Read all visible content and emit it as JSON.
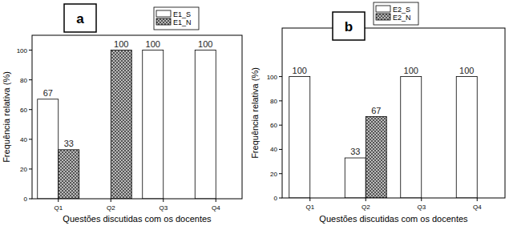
{
  "chart_data": [
    {
      "type": "bar",
      "title": "a",
      "xlabel": "Questões discutidas com os docentes",
      "ylabel": "Frequência relativa (%)",
      "categories": [
        "Q1",
        "Q2",
        "Q3",
        "Q4"
      ],
      "series": [
        {
          "name": "E1_S",
          "color": "#ffffff",
          "values": [
            67,
            null,
            100,
            100
          ]
        },
        {
          "name": "E1_N",
          "color": "#555555",
          "marker": "hatch",
          "values": [
            33,
            100,
            null,
            null
          ]
        }
      ],
      "ylim": [
        0,
        110
      ],
      "yticks": [
        0,
        20,
        40,
        60,
        80,
        100
      ],
      "data_labels": true,
      "legend": "top-right"
    },
    {
      "type": "bar",
      "title": "b",
      "xlabel": "Questões discutidas com os docentes",
      "ylabel": "Frequência relativa (%)",
      "categories": [
        "Q1",
        "Q2",
        "Q3",
        "Q4"
      ],
      "series": [
        {
          "name": "E2_S",
          "color": "#ffffff",
          "values": [
            100,
            33,
            100,
            100
          ]
        },
        {
          "name": "E2_N",
          "color": "#555555",
          "marker": "hatch",
          "values": [
            null,
            67,
            null,
            null
          ]
        }
      ],
      "ylim": [
        0,
        140
      ],
      "yticks": [
        0,
        20,
        40,
        60,
        80,
        100
      ],
      "data_labels": true,
      "legend": "top-right"
    }
  ]
}
